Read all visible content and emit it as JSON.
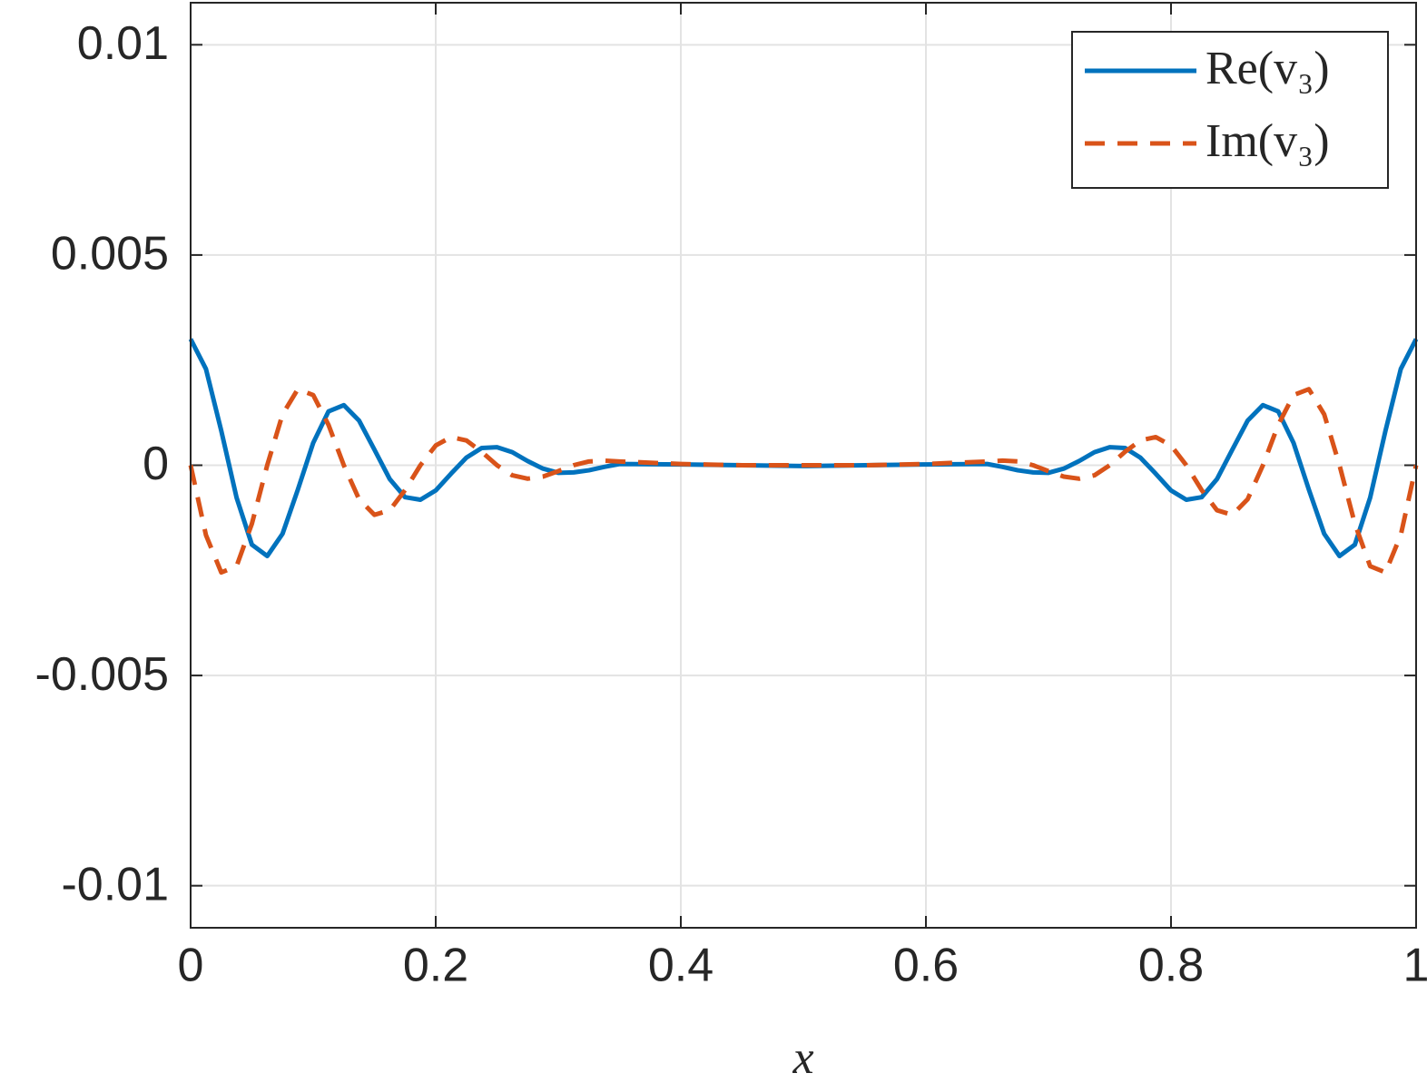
{
  "chart_data": {
    "type": "line",
    "x_label": "x",
    "x": [
      0,
      0.0125,
      0.025,
      0.0375,
      0.05,
      0.0625,
      0.075,
      0.0875,
      0.1,
      0.1125,
      0.125,
      0.1375,
      0.15,
      0.1625,
      0.175,
      0.1875,
      0.2,
      0.2125,
      0.225,
      0.2375,
      0.25,
      0.2625,
      0.275,
      0.2875,
      0.3,
      0.3125,
      0.325,
      0.3375,
      0.35,
      0.4,
      0.45,
      0.5,
      0.55,
      0.6,
      0.65,
      0.6625,
      0.675,
      0.6875,
      0.7,
      0.7125,
      0.725,
      0.7375,
      0.75,
      0.7625,
      0.775,
      0.7875,
      0.8,
      0.8125,
      0.825,
      0.8375,
      0.85,
      0.8625,
      0.875,
      0.8875,
      0.9,
      0.9125,
      0.925,
      0.9375,
      0.95,
      0.9625,
      0.975,
      0.9875,
      1
    ],
    "series": [
      {
        "name": "Re(v₃)",
        "color": "#0072bd",
        "dash": false,
        "values": [
          0.003,
          0.00229,
          0.00082,
          -0.00077,
          -0.00189,
          -0.00216,
          -0.00163,
          -0.00058,
          0.00053,
          0.00128,
          0.00143,
          0.00106,
          0.00037,
          -0.00033,
          -0.00076,
          -0.00082,
          -0.0006,
          -0.0002,
          0.00018,
          0.00041,
          0.00043,
          0.00031,
          0.0001,
          -8e-05,
          -0.00018,
          -0.00017,
          -0.00012,
          -4e-05,
          3e-05,
          2e-05,
          0,
          -2e-05,
          0,
          2e-05,
          3e-05,
          -4e-05,
          -0.00012,
          -0.00017,
          -0.00018,
          -8e-05,
          0.0001,
          0.00031,
          0.00043,
          0.00041,
          0.00018,
          -0.0002,
          -0.0006,
          -0.00082,
          -0.00076,
          -0.00033,
          0.00037,
          0.00106,
          0.00143,
          0.00128,
          0.00053,
          -0.00058,
          -0.00163,
          -0.00216,
          -0.00189,
          -0.00077,
          0.00082,
          0.00229,
          0.003
        ]
      },
      {
        "name": "Im(v₃)",
        "color": "#d95319",
        "dash": true,
        "values": [
          0,
          -0.00166,
          -0.00255,
          -0.0024,
          -0.00139,
          0,
          0.00121,
          0.00181,
          0.00167,
          0.00096,
          0,
          -0.00081,
          -0.00118,
          -0.00107,
          -0.00059,
          0,
          0.00047,
          0.00067,
          0.00059,
          0.00032,
          0,
          -0.00024,
          -0.00032,
          -0.00027,
          -0.00014,
          0,
          9e-05,
          0.00011,
          9e-05,
          3e-05,
          0,
          0,
          0,
          3e-05,
          9e-05,
          0.00011,
          9e-05,
          0,
          -0.00014,
          -0.00027,
          -0.00032,
          -0.00024,
          0,
          0.00032,
          0.00059,
          0.00067,
          0.00047,
          0,
          -0.00059,
          -0.00107,
          -0.00118,
          -0.00081,
          0,
          0.00096,
          0.00167,
          0.00181,
          0.00121,
          0,
          -0.00139,
          -0.0024,
          -0.00255,
          -0.00166,
          0
        ]
      }
    ],
    "xlim": [
      0,
      1
    ],
    "xticks": [
      0,
      0.2,
      0.4,
      0.6,
      0.8,
      1
    ],
    "ylim": [
      -0.011,
      0.011
    ],
    "yticks": [
      -0.01,
      -0.005,
      0,
      0.005,
      0.01
    ],
    "grid": true,
    "legend": "upper right"
  }
}
